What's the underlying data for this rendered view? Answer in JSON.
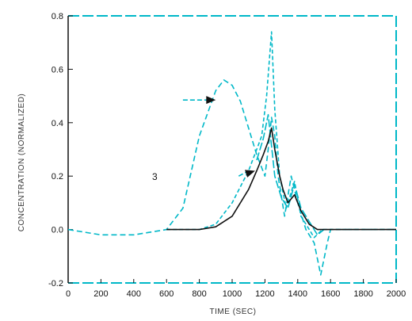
{
  "chart_data": {
    "type": "line",
    "xlabel": "TIME (SEC)",
    "ylabel": "CONCENTRATION (NORMALIZED)",
    "xlim": [
      0,
      2000
    ],
    "ylim": [
      -0.2,
      0.8
    ],
    "x_ticks": [
      "0",
      "200",
      "400",
      "600",
      "800",
      "1000",
      "1200",
      "1400",
      "1600",
      "1800",
      "2000"
    ],
    "y_ticks": [
      "0.8",
      "0.6",
      "0.4",
      "0.2",
      "0.0",
      "-0.2"
    ],
    "annotation_label": "3",
    "series": [
      {
        "color": "#00b8c8",
        "dash": "7,4",
        "points": [
          [
            0,
            0.0
          ],
          [
            200,
            -0.02
          ],
          [
            400,
            -0.02
          ],
          [
            600,
            0.0
          ],
          [
            700,
            0.08
          ],
          [
            800,
            0.35
          ],
          [
            900,
            0.52
          ],
          [
            950,
            0.56
          ],
          [
            1000,
            0.54
          ],
          [
            1050,
            0.48
          ],
          [
            1100,
            0.38
          ],
          [
            1150,
            0.28
          ],
          [
            1200,
            0.2
          ],
          [
            1220,
            0.3
          ],
          [
            1240,
            0.42
          ],
          [
            1260,
            0.35
          ],
          [
            1280,
            0.2
          ],
          [
            1320,
            0.05
          ],
          [
            1360,
            0.2
          ],
          [
            1400,
            0.1
          ],
          [
            1450,
            0.0
          ],
          [
            1500,
            -0.05
          ],
          [
            1540,
            -0.17
          ],
          [
            1580,
            -0.05
          ],
          [
            1600,
            0.0
          ],
          [
            2000,
            0.0
          ]
        ]
      },
      {
        "color": "#00b8c8",
        "dash": "5,3",
        "points": [
          [
            600,
            0.0
          ],
          [
            800,
            0.0
          ],
          [
            900,
            0.02
          ],
          [
            1000,
            0.1
          ],
          [
            1100,
            0.22
          ],
          [
            1150,
            0.3
          ],
          [
            1180,
            0.35
          ],
          [
            1210,
            0.5
          ],
          [
            1240,
            0.74
          ],
          [
            1260,
            0.45
          ],
          [
            1290,
            0.2
          ],
          [
            1330,
            0.08
          ],
          [
            1380,
            0.18
          ],
          [
            1420,
            0.05
          ],
          [
            1470,
            0.0
          ],
          [
            1500,
            -0.03
          ],
          [
            1550,
            0.0
          ],
          [
            2000,
            0.0
          ]
        ]
      },
      {
        "color": "#00b8c8",
        "dash": "10,3",
        "points": [
          [
            1150,
            0.26
          ],
          [
            1190,
            0.34
          ],
          [
            1220,
            0.43
          ],
          [
            1260,
            0.2
          ],
          [
            1300,
            0.12
          ],
          [
            1340,
            0.08
          ],
          [
            1380,
            0.17
          ],
          [
            1420,
            0.08
          ],
          [
            1470,
            0.03
          ],
          [
            1520,
            -0.02
          ],
          [
            1560,
            0.0
          ]
        ]
      },
      {
        "color": "#111111",
        "dash": "",
        "points": [
          [
            600,
            0.0
          ],
          [
            800,
            0.0
          ],
          [
            900,
            0.01
          ],
          [
            1000,
            0.05
          ],
          [
            1100,
            0.15
          ],
          [
            1150,
            0.22
          ],
          [
            1190,
            0.28
          ],
          [
            1220,
            0.33
          ],
          [
            1240,
            0.38
          ],
          [
            1260,
            0.3
          ],
          [
            1290,
            0.2
          ],
          [
            1310,
            0.15
          ],
          [
            1340,
            0.1
          ],
          [
            1380,
            0.13
          ],
          [
            1420,
            0.07
          ],
          [
            1470,
            0.02
          ],
          [
            1520,
            0.0
          ],
          [
            2000,
            0.0
          ]
        ]
      }
    ],
    "arrows": [
      {
        "from": [
          700,
          0.485
        ],
        "to": [
          900,
          0.485
        ]
      },
      {
        "from": [
          1040,
          0.2
        ],
        "to": [
          1140,
          0.22
        ]
      }
    ],
    "frame_color": "#00b8c8"
  }
}
